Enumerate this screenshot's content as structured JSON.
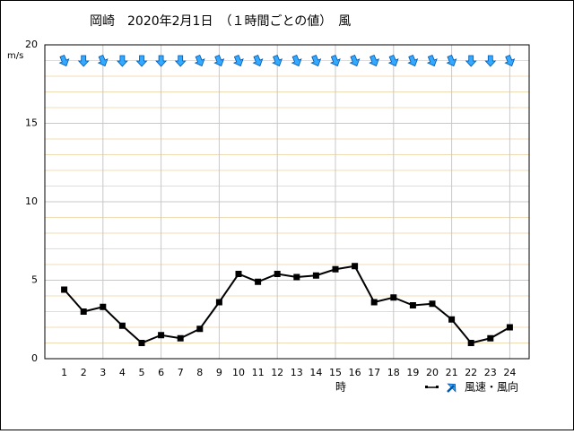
{
  "chart_data": {
    "type": "line",
    "title": "岡崎　2020年2月1日　（１時間ごとの値）　風",
    "y_label": "m/s",
    "x_label": "時",
    "x": [
      1,
      2,
      3,
      4,
      5,
      6,
      7,
      8,
      9,
      10,
      11,
      12,
      13,
      14,
      15,
      16,
      17,
      18,
      19,
      20,
      21,
      22,
      23,
      24
    ],
    "xlim": [
      0,
      25
    ],
    "xgrid": [
      3,
      6,
      9,
      12,
      15,
      18,
      21,
      24
    ],
    "ylim": [
      0,
      20
    ],
    "yticks": [
      0,
      5,
      10,
      15,
      20
    ],
    "minor_grid_step": 1,
    "grid": true,
    "series": [
      {
        "name": "風速・風向",
        "color": "#000000",
        "arrow_color": "#33aaff",
        "values": [
          4.4,
          3.0,
          3.3,
          2.1,
          1.0,
          1.5,
          1.3,
          1.9,
          3.6,
          5.4,
          4.9,
          5.4,
          5.2,
          5.3,
          5.7,
          5.9,
          3.6,
          3.9,
          3.4,
          3.5,
          2.5,
          1.0,
          1.3,
          2.0
        ],
        "directions": [
          337.5,
          0,
          337.5,
          0,
          0,
          0,
          0,
          337.5,
          337.5,
          337.5,
          337.5,
          337.5,
          337.5,
          337.5,
          337.5,
          337.5,
          337.5,
          337.5,
          337.5,
          337.5,
          337.5,
          0,
          0,
          337.5
        ]
      }
    ]
  }
}
